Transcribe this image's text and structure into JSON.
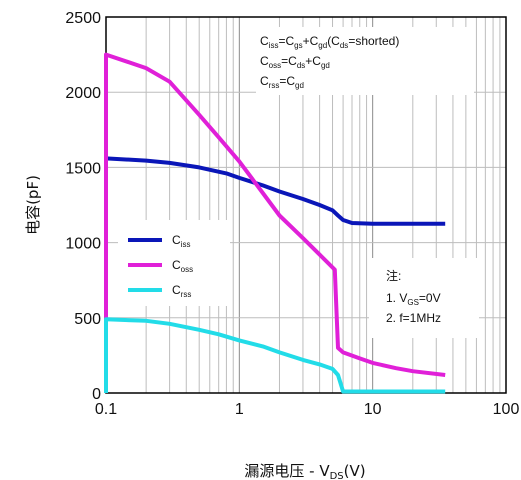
{
  "chart_data": {
    "type": "line",
    "xlabel": "漏源电压 - V_DS(V)",
    "xlabel_parts": {
      "prefix": "漏源电压",
      "dash": "-",
      "v": "V",
      "sub": "DS",
      "unit": "(V)"
    },
    "ylabel": "电容(pF)",
    "x_scale": "log",
    "xlim": [
      0.1,
      100
    ],
    "ylim": [
      0,
      2500
    ],
    "x_ticks": [
      0.1,
      1,
      10,
      100
    ],
    "x_tick_labels": [
      "0.1",
      "1",
      "10",
      "100"
    ],
    "y_ticks": [
      0,
      500,
      1000,
      1500,
      2000,
      2500
    ],
    "y_tick_labels": [
      "0",
      "500",
      "1000",
      "1500",
      "2000",
      "2500"
    ],
    "grid": true,
    "legend_position": "middle-left",
    "series": [
      {
        "name": "Ciss",
        "label_main": "C",
        "label_sub": "iss",
        "color": "#0a16b8",
        "x": [
          0.1,
          0.2,
          0.3,
          0.5,
          0.8,
          1,
          1.5,
          2,
          3,
          4,
          5,
          5.5,
          6,
          7,
          10,
          20,
          35
        ],
        "y": [
          1560,
          1545,
          1530,
          1500,
          1460,
          1430,
          1380,
          1340,
          1290,
          1250,
          1215,
          1180,
          1150,
          1130,
          1125,
          1125,
          1125
        ]
      },
      {
        "name": "Coss",
        "label_main": "C",
        "label_sub": "oss",
        "color": "#e020d8",
        "x": [
          0.1,
          0.1,
          0.2,
          0.3,
          0.5,
          0.7,
          1,
          1.5,
          2,
          3,
          4,
          5.2,
          5.5,
          6,
          8,
          10,
          15,
          20,
          35
        ],
        "y": [
          480,
          2250,
          2160,
          2070,
          1850,
          1700,
          1540,
          1330,
          1180,
          1030,
          920,
          820,
          300,
          270,
          230,
          200,
          165,
          145,
          120
        ]
      },
      {
        "name": "Crss",
        "label_main": "C",
        "label_sub": "rss",
        "color": "#22dce8",
        "x": [
          0.1,
          0.1,
          0.2,
          0.3,
          0.5,
          0.7,
          1,
          1.5,
          2,
          3,
          4,
          5,
          5.5,
          6,
          10,
          20,
          35
        ],
        "y": [
          0,
          490,
          480,
          460,
          420,
          390,
          350,
          310,
          270,
          220,
          190,
          160,
          120,
          10,
          10,
          10,
          10
        ]
      }
    ],
    "annotations": {
      "formulas": [
        {
          "parts": [
            [
              "C",
              ""
            ],
            [
              "iss",
              "sub"
            ],
            [
              "=C",
              ""
            ],
            [
              "gs",
              "sub"
            ],
            [
              "+C",
              ""
            ],
            [
              "gd",
              "sub"
            ],
            [
              "(C",
              ""
            ],
            [
              "ds",
              "sub"
            ],
            [
              "=shorted)",
              ""
            ]
          ]
        },
        {
          "parts": [
            [
              "C",
              ""
            ],
            [
              "oss",
              "sub"
            ],
            [
              "=C",
              ""
            ],
            [
              "ds",
              "sub"
            ],
            [
              "+C",
              ""
            ],
            [
              "gd",
              "sub"
            ]
          ]
        },
        {
          "parts": [
            [
              "C",
              ""
            ],
            [
              "rss",
              "sub"
            ],
            [
              "=C",
              ""
            ],
            [
              "gd",
              "sub"
            ]
          ]
        }
      ],
      "notes_title": "注:",
      "notes": [
        {
          "parts": [
            [
              "1. V",
              ""
            ],
            [
              "GS",
              "sub"
            ],
            [
              "=0V",
              ""
            ]
          ]
        },
        {
          "parts": [
            [
              "2. f=1MHz",
              ""
            ]
          ]
        }
      ]
    }
  }
}
